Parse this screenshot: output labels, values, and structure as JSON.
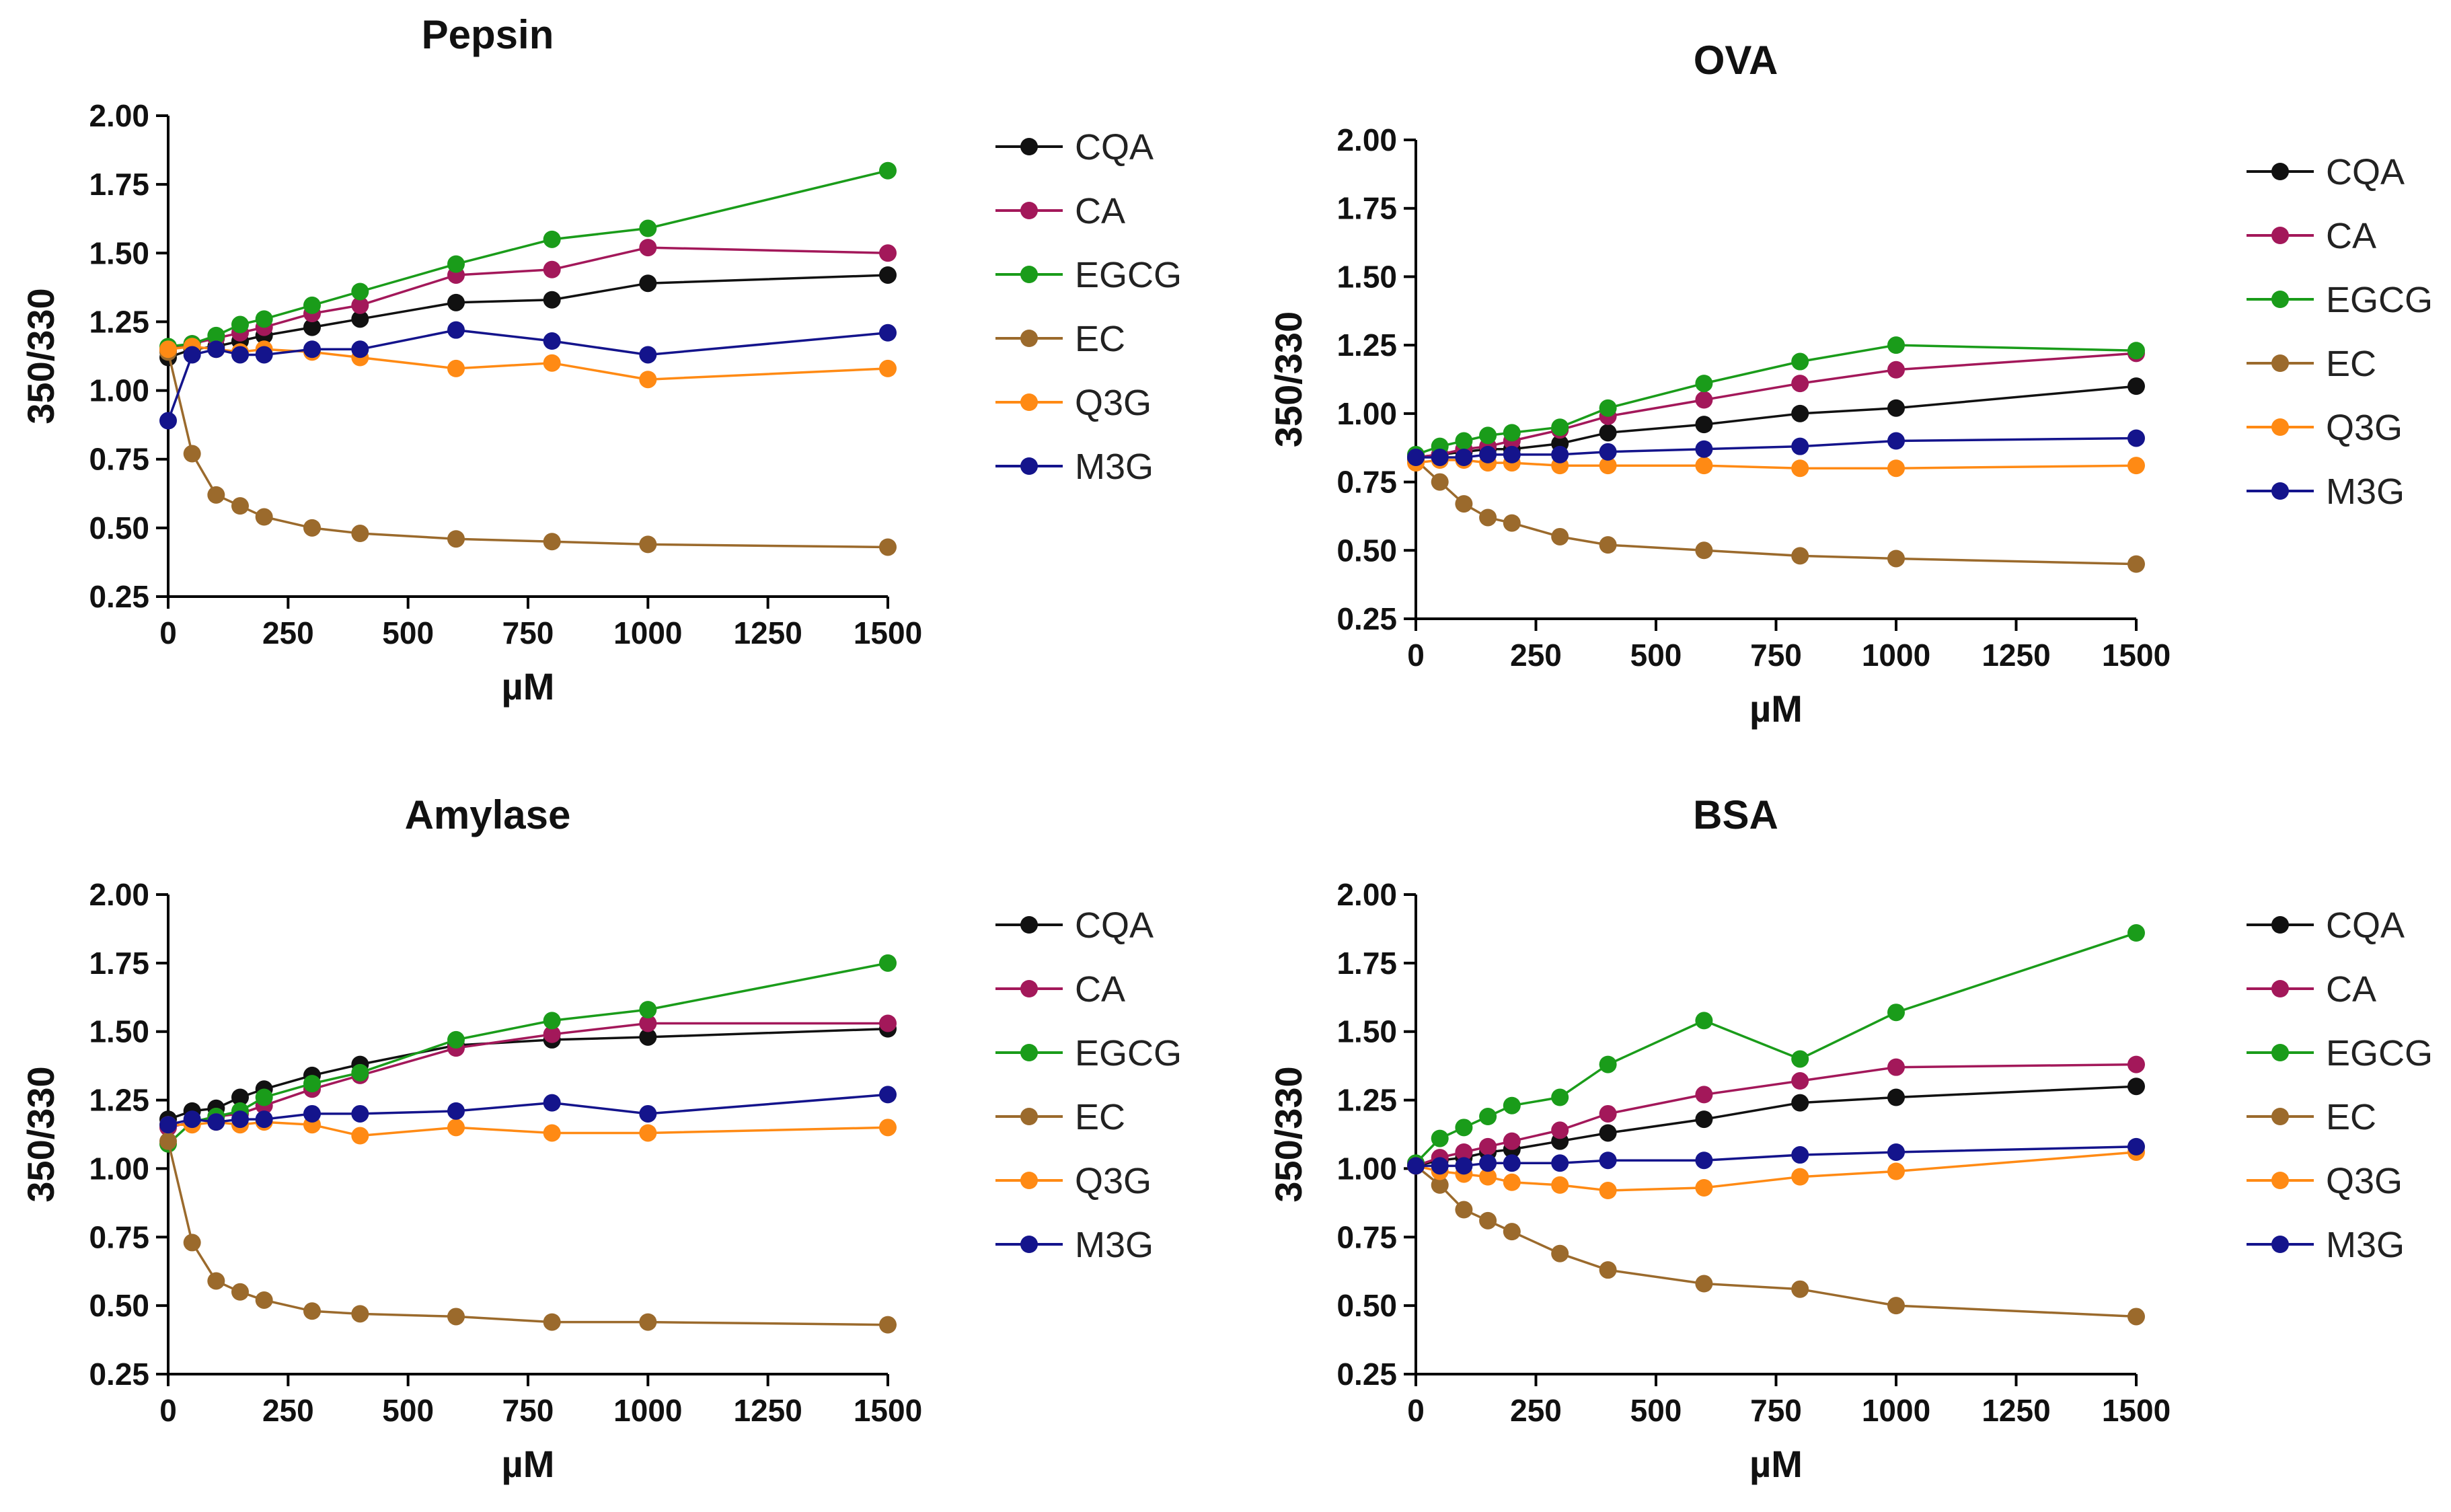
{
  "chart_data": [
    {
      "type": "line",
      "title": "Pepsin",
      "xlabel": "µM",
      "ylabel": "350/330",
      "xlim": [
        0,
        1500
      ],
      "ylim": [
        0.25,
        2.0
      ],
      "xticks": [
        "0",
        "250",
        "500",
        "750",
        "1000",
        "1250",
        "1500"
      ],
      "yticks": [
        "0.25",
        "0.50",
        "0.75",
        "1.00",
        "1.25",
        "1.50",
        "1.75",
        "2.00"
      ],
      "x": [
        0,
        50,
        100,
        150,
        200,
        300,
        400,
        600,
        800,
        1000,
        1500
      ],
      "series": [
        {
          "name": "CQA",
          "color": "#111111",
          "values": [
            1.12,
            1.15,
            1.16,
            1.18,
            1.2,
            1.23,
            1.26,
            1.32,
            1.33,
            1.39,
            1.42
          ]
        },
        {
          "name": "CA",
          "color": "#a3185a",
          "values": [
            1.15,
            1.17,
            1.19,
            1.21,
            1.23,
            1.28,
            1.31,
            1.42,
            1.44,
            1.52,
            1.5
          ]
        },
        {
          "name": "EGCG",
          "color": "#1a9c1a",
          "values": [
            1.16,
            1.17,
            1.2,
            1.24,
            1.26,
            1.31,
            1.36,
            1.46,
            1.55,
            1.59,
            1.8
          ]
        },
        {
          "name": "EC",
          "color": "#9b6a2c",
          "values": [
            1.14,
            0.77,
            0.62,
            0.58,
            0.54,
            0.5,
            0.48,
            0.46,
            0.45,
            0.44,
            0.43
          ]
        },
        {
          "name": "Q3G",
          "color": "#ff8a14",
          "values": [
            1.15,
            1.16,
            1.15,
            1.14,
            1.15,
            1.14,
            1.12,
            1.08,
            1.1,
            1.04,
            1.08
          ]
        },
        {
          "name": "M3G",
          "color": "#14148c",
          "values": [
            0.89,
            1.13,
            1.15,
            1.13,
            1.13,
            1.15,
            1.15,
            1.22,
            1.18,
            1.13,
            1.21
          ]
        }
      ]
    },
    {
      "type": "line",
      "title": "OVA",
      "xlabel": "µM",
      "ylabel": "350/330",
      "xlim": [
        0,
        1500
      ],
      "ylim": [
        0.25,
        2.0
      ],
      "xticks": [
        "0",
        "250",
        "500",
        "750",
        "1000",
        "1250",
        "1500"
      ],
      "yticks": [
        "0.25",
        "0.50",
        "0.75",
        "1.00",
        "1.25",
        "1.50",
        "1.75",
        "2.00"
      ],
      "x": [
        0,
        50,
        100,
        150,
        200,
        300,
        400,
        600,
        800,
        1000,
        1500
      ],
      "series": [
        {
          "name": "CQA",
          "color": "#111111",
          "values": [
            0.84,
            0.85,
            0.86,
            0.87,
            0.87,
            0.89,
            0.93,
            0.96,
            1.0,
            1.02,
            1.1
          ]
        },
        {
          "name": "CA",
          "color": "#a3185a",
          "values": [
            0.84,
            0.85,
            0.87,
            0.88,
            0.9,
            0.94,
            0.99,
            1.05,
            1.11,
            1.16,
            1.22
          ]
        },
        {
          "name": "EGCG",
          "color": "#1a9c1a",
          "values": [
            0.85,
            0.88,
            0.9,
            0.92,
            0.93,
            0.95,
            1.02,
            1.11,
            1.19,
            1.25,
            1.23
          ]
        },
        {
          "name": "EC",
          "color": "#9b6a2c",
          "values": [
            0.83,
            0.75,
            0.67,
            0.62,
            0.6,
            0.55,
            0.52,
            0.5,
            0.48,
            0.47,
            0.45
          ]
        },
        {
          "name": "Q3G",
          "color": "#ff8a14",
          "values": [
            0.82,
            0.83,
            0.83,
            0.82,
            0.82,
            0.81,
            0.81,
            0.81,
            0.8,
            0.8,
            0.81
          ]
        },
        {
          "name": "M3G",
          "color": "#14148c",
          "values": [
            0.84,
            0.84,
            0.84,
            0.85,
            0.85,
            0.85,
            0.86,
            0.87,
            0.88,
            0.9,
            0.91
          ]
        }
      ]
    },
    {
      "type": "line",
      "title": "Amylase",
      "xlabel": "µM",
      "ylabel": "350/330",
      "xlim": [
        0,
        1500
      ],
      "ylim": [
        0.25,
        2.0
      ],
      "xticks": [
        "0",
        "250",
        "500",
        "750",
        "1000",
        "1250",
        "1500"
      ],
      "yticks": [
        "0.25",
        "0.50",
        "0.75",
        "1.00",
        "1.25",
        "1.50",
        "1.75",
        "2.00"
      ],
      "x": [
        0,
        50,
        100,
        150,
        200,
        300,
        400,
        600,
        800,
        1000,
        1500
      ],
      "series": [
        {
          "name": "CQA",
          "color": "#111111",
          "values": [
            1.18,
            1.21,
            1.22,
            1.26,
            1.29,
            1.34,
            1.38,
            1.45,
            1.47,
            1.48,
            1.51
          ]
        },
        {
          "name": "CA",
          "color": "#a3185a",
          "values": [
            1.15,
            1.17,
            1.19,
            1.2,
            1.23,
            1.29,
            1.34,
            1.44,
            1.49,
            1.53,
            1.53
          ]
        },
        {
          "name": "EGCG",
          "color": "#1a9c1a",
          "values": [
            1.09,
            1.17,
            1.19,
            1.21,
            1.26,
            1.31,
            1.35,
            1.47,
            1.54,
            1.58,
            1.75
          ]
        },
        {
          "name": "EC",
          "color": "#9b6a2c",
          "values": [
            1.1,
            0.73,
            0.59,
            0.55,
            0.52,
            0.48,
            0.47,
            0.46,
            0.44,
            0.44,
            0.43
          ]
        },
        {
          "name": "Q3G",
          "color": "#ff8a14",
          "values": [
            1.16,
            1.16,
            1.17,
            1.16,
            1.17,
            1.16,
            1.12,
            1.15,
            1.13,
            1.13,
            1.15
          ]
        },
        {
          "name": "M3G",
          "color": "#14148c",
          "values": [
            1.16,
            1.18,
            1.17,
            1.18,
            1.18,
            1.2,
            1.2,
            1.21,
            1.24,
            1.2,
            1.27
          ]
        }
      ]
    },
    {
      "type": "line",
      "title": "BSA",
      "xlabel": "µM",
      "ylabel": "350/330",
      "xlim": [
        0,
        1500
      ],
      "ylim": [
        0.25,
        2.0
      ],
      "xticks": [
        "0",
        "250",
        "500",
        "750",
        "1000",
        "1250",
        "1500"
      ],
      "yticks": [
        "0.25",
        "0.50",
        "0.75",
        "1.00",
        "1.25",
        "1.50",
        "1.75",
        "2.00"
      ],
      "x": [
        0,
        50,
        100,
        150,
        200,
        300,
        400,
        600,
        800,
        1000,
        1500
      ],
      "series": [
        {
          "name": "CQA",
          "color": "#111111",
          "values": [
            1.01,
            1.03,
            1.04,
            1.06,
            1.07,
            1.1,
            1.13,
            1.18,
            1.24,
            1.26,
            1.3
          ]
        },
        {
          "name": "CA",
          "color": "#a3185a",
          "values": [
            1.01,
            1.04,
            1.06,
            1.08,
            1.1,
            1.14,
            1.2,
            1.27,
            1.32,
            1.37,
            1.38
          ]
        },
        {
          "name": "EGCG",
          "color": "#1a9c1a",
          "values": [
            1.02,
            1.11,
            1.15,
            1.19,
            1.23,
            1.26,
            1.38,
            1.54,
            1.4,
            1.57,
            1.86
          ]
        },
        {
          "name": "EC",
          "color": "#9b6a2c",
          "values": [
            1.01,
            0.94,
            0.85,
            0.81,
            0.77,
            0.69,
            0.63,
            0.58,
            0.56,
            0.5,
            0.46
          ]
        },
        {
          "name": "Q3G",
          "color": "#ff8a14",
          "values": [
            1.01,
            0.99,
            0.98,
            0.97,
            0.95,
            0.94,
            0.92,
            0.93,
            0.97,
            0.99,
            1.06
          ]
        },
        {
          "name": "M3G",
          "color": "#14148c",
          "values": [
            1.01,
            1.01,
            1.01,
            1.02,
            1.02,
            1.02,
            1.03,
            1.03,
            1.05,
            1.06,
            1.08
          ]
        }
      ]
    }
  ]
}
